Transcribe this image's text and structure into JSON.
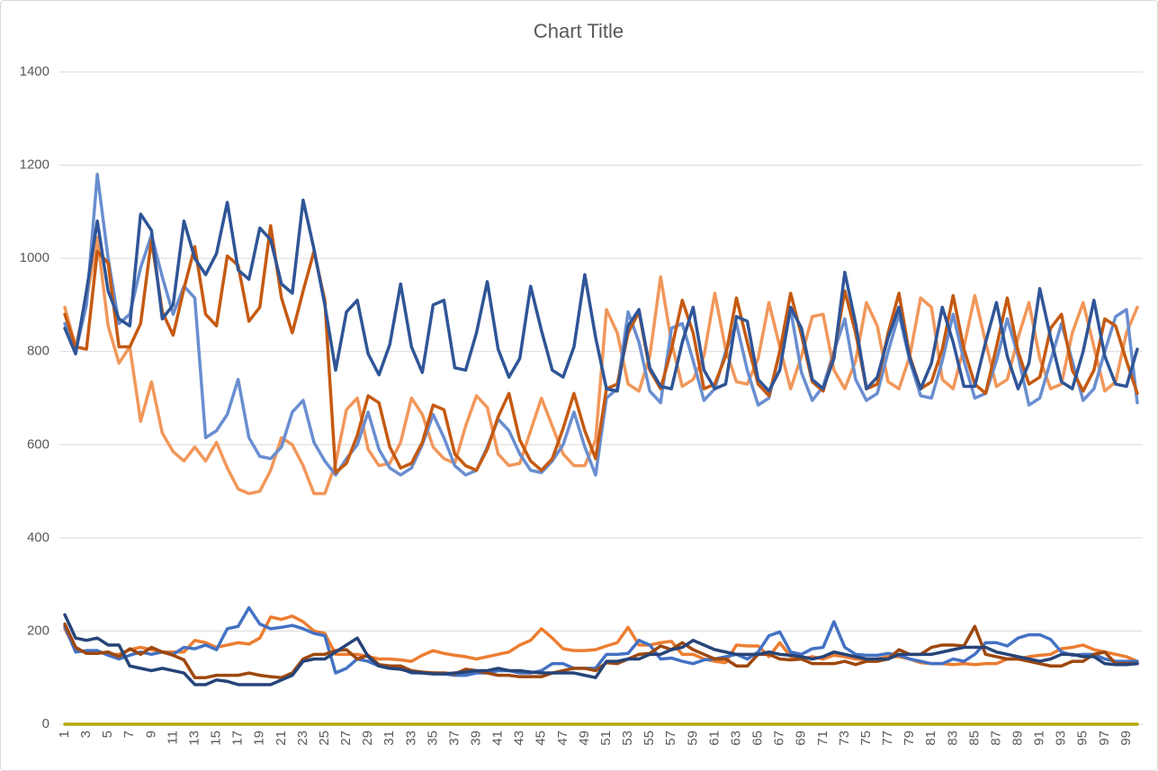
{
  "chart_data": {
    "type": "line",
    "title": "Chart Title",
    "categories": [
      1,
      null,
      3,
      null,
      5,
      null,
      7,
      null,
      9,
      null,
      11,
      null,
      13,
      null,
      15,
      null,
      17,
      null,
      19,
      null,
      21,
      null,
      23,
      null,
      25,
      null,
      27,
      null,
      29,
      null,
      31,
      null,
      33,
      null,
      35,
      null,
      37,
      null,
      39,
      null,
      41,
      null,
      43,
      null,
      45,
      null,
      47,
      null,
      49,
      null,
      51,
      null,
      53,
      null,
      55,
      null,
      57,
      null,
      59,
      null,
      61,
      null,
      63,
      null,
      65,
      null,
      67,
      null,
      69,
      null,
      71,
      null,
      73,
      null,
      75,
      null,
      77,
      null,
      79,
      null,
      81,
      null,
      83,
      null,
      85,
      null,
      87,
      null,
      89,
      null,
      91,
      null,
      93,
      null,
      95,
      null,
      97,
      null,
      99,
      null
    ],
    "ylim": [
      0,
      1400
    ],
    "yticks": [
      0,
      200,
      400,
      600,
      800,
      1000,
      1200,
      1400
    ],
    "grid": true,
    "series": [
      {
        "color": "#b4a900",
        "values": [
          0,
          0,
          0,
          0,
          0,
          0,
          0,
          0,
          0,
          0,
          0,
          0,
          0,
          0,
          0,
          0,
          0,
          0,
          0,
          0,
          0,
          0,
          0,
          0,
          0,
          0,
          0,
          0,
          0,
          0,
          0,
          0,
          0,
          0,
          0,
          0,
          0,
          0,
          0,
          0,
          0,
          0,
          0,
          0,
          0,
          0,
          0,
          0,
          0,
          0,
          0,
          0,
          0,
          0,
          0,
          0,
          0,
          0,
          0,
          0,
          0,
          0,
          0,
          0,
          0,
          0,
          0,
          0,
          0,
          0,
          0,
          0,
          0,
          0,
          0,
          0,
          0,
          0,
          0,
          0,
          0,
          0,
          0,
          0,
          0,
          0,
          0,
          0,
          0,
          0,
          0,
          0,
          0,
          0,
          0,
          0,
          0,
          0,
          0,
          0
        ]
      },
      {
        "color": "#f1975a",
        "values": [
          895,
          810,
          910,
          1045,
          855,
          775,
          810,
          650,
          735,
          625,
          585,
          565,
          595,
          565,
          605,
          550,
          505,
          495,
          500,
          545,
          615,
          600,
          555,
          495,
          495,
          560,
          675,
          700,
          590,
          555,
          560,
          605,
          700,
          665,
          595,
          570,
          560,
          640,
          705,
          680,
          580,
          555,
          560,
          630,
          700,
          640,
          580,
          555,
          555,
          610,
          890,
          840,
          730,
          715,
          790,
          960,
          820,
          725,
          740,
          790,
          925,
          805,
          735,
          730,
          785,
          905,
          810,
          720,
          790,
          875,
          880,
          760,
          720,
          780,
          905,
          855,
          735,
          720,
          790,
          915,
          895,
          740,
          720,
          810,
          920,
          820,
          725,
          740,
          830,
          905,
          785,
          720,
          730,
          840,
          905,
          810,
          715,
          735,
          840,
          895
        ]
      },
      {
        "color": "#698ed0",
        "values": [
          860,
          800,
          900,
          1180,
          1000,
          860,
          880,
          980,
          1050,
          960,
          880,
          940,
          915,
          615,
          630,
          665,
          740,
          615,
          575,
          570,
          595,
          670,
          695,
          605,
          565,
          535,
          570,
          600,
          670,
          590,
          550,
          535,
          550,
          600,
          665,
          615,
          555,
          535,
          545,
          595,
          655,
          630,
          580,
          545,
          540,
          565,
          600,
          670,
          595,
          535,
          700,
          720,
          885,
          820,
          715,
          690,
          850,
          860,
          780,
          695,
          720,
          800,
          860,
          760,
          685,
          700,
          800,
          890,
          755,
          695,
          725,
          800,
          870,
          740,
          695,
          710,
          800,
          880,
          780,
          705,
          700,
          780,
          880,
          780,
          700,
          710,
          780,
          870,
          790,
          685,
          700,
          780,
          860,
          780,
          695,
          720,
          800,
          875,
          890,
          690
        ]
      },
      {
        "color": "#c55a11",
        "values": [
          880,
          810,
          805,
          1015,
          990,
          810,
          810,
          860,
          1040,
          885,
          835,
          935,
          1025,
          880,
          855,
          1005,
          985,
          865,
          895,
          1070,
          915,
          840,
          930,
          1015,
          910,
          540,
          560,
          620,
          705,
          690,
          595,
          550,
          560,
          605,
          685,
          675,
          580,
          555,
          545,
          590,
          660,
          710,
          610,
          565,
          545,
          570,
          635,
          710,
          630,
          570,
          720,
          730,
          840,
          885,
          760,
          720,
          805,
          910,
          840,
          720,
          730,
          790,
          915,
          820,
          730,
          705,
          800,
          925,
          835,
          735,
          715,
          795,
          930,
          840,
          720,
          730,
          840,
          925,
          790,
          720,
          735,
          805,
          920,
          805,
          730,
          710,
          810,
          915,
          800,
          730,
          745,
          850,
          880,
          760,
          715,
          760,
          870,
          855,
          780,
          710
        ]
      },
      {
        "color": "#2f5597",
        "values": [
          850,
          795,
          930,
          1080,
          930,
          870,
          855,
          1095,
          1060,
          870,
          900,
          1080,
          1000,
          965,
          1010,
          1120,
          975,
          955,
          1065,
          1040,
          945,
          925,
          1125,
          1020,
          900,
          760,
          885,
          910,
          795,
          750,
          815,
          945,
          810,
          755,
          900,
          910,
          765,
          760,
          840,
          950,
          805,
          745,
          785,
          940,
          845,
          760,
          745,
          810,
          965,
          830,
          720,
          715,
          855,
          890,
          765,
          725,
          720,
          820,
          895,
          760,
          720,
          730,
          875,
          865,
          740,
          715,
          760,
          895,
          850,
          740,
          720,
          785,
          970,
          860,
          720,
          745,
          830,
          895,
          785,
          720,
          775,
          895,
          820,
          725,
          725,
          820,
          905,
          790,
          720,
          775,
          935,
          830,
          735,
          720,
          800,
          910,
          790,
          730,
          725,
          805
        ]
      },
      {
        "color": "#ed7d31",
        "values": [
          205,
          160,
          155,
          155,
          150,
          150,
          160,
          165,
          160,
          155,
          155,
          155,
          180,
          175,
          165,
          170,
          175,
          172,
          185,
          230,
          225,
          232,
          220,
          200,
          195,
          150,
          150,
          150,
          145,
          140,
          140,
          138,
          135,
          148,
          158,
          152,
          148,
          145,
          140,
          145,
          150,
          155,
          170,
          180,
          205,
          185,
          162,
          158,
          158,
          160,
          168,
          175,
          208,
          170,
          170,
          175,
          178,
          150,
          150,
          140,
          135,
          132,
          170,
          168,
          168,
          145,
          175,
          145,
          140,
          145,
          140,
          148,
          145,
          140,
          138,
          140,
          145,
          145,
          140,
          132,
          130,
          130,
          128,
          130,
          128,
          130,
          130,
          140,
          140,
          145,
          148,
          150,
          162,
          165,
          170,
          160,
          155,
          150,
          145,
          135
        ]
      },
      {
        "color": "#4472c4",
        "values": [
          210,
          155,
          158,
          158,
          148,
          140,
          148,
          155,
          150,
          155,
          150,
          165,
          162,
          170,
          160,
          205,
          210,
          250,
          215,
          205,
          208,
          212,
          205,
          195,
          190,
          110,
          120,
          140,
          135,
          125,
          125,
          120,
          110,
          110,
          110,
          108,
          105,
          105,
          110,
          110,
          115,
          115,
          110,
          110,
          115,
          130,
          130,
          120,
          120,
          120,
          150,
          150,
          152,
          180,
          170,
          140,
          142,
          135,
          130,
          138,
          140,
          145,
          150,
          140,
          155,
          190,
          198,
          155,
          150,
          162,
          165,
          220,
          165,
          150,
          148,
          148,
          152,
          148,
          140,
          135,
          130,
          130,
          140,
          135,
          150,
          175,
          175,
          168,
          185,
          192,
          192,
          182,
          155,
          148,
          150,
          150,
          140,
          135,
          135,
          135
        ]
      },
      {
        "color": "#9e480e",
        "values": [
          215,
          165,
          152,
          152,
          155,
          145,
          162,
          150,
          165,
          155,
          148,
          138,
          100,
          100,
          105,
          105,
          105,
          110,
          105,
          102,
          100,
          110,
          140,
          150,
          150,
          158,
          160,
          140,
          148,
          128,
          125,
          125,
          115,
          112,
          110,
          110,
          108,
          118,
          115,
          110,
          105,
          105,
          102,
          102,
          102,
          110,
          115,
          120,
          120,
          115,
          132,
          130,
          140,
          150,
          152,
          168,
          160,
          175,
          160,
          150,
          140,
          140,
          125,
          125,
          150,
          150,
          140,
          138,
          140,
          130,
          130,
          130,
          135,
          128,
          135,
          135,
          140,
          160,
          150,
          150,
          165,
          170,
          170,
          168,
          210,
          150,
          145,
          140,
          140,
          135,
          130,
          125,
          125,
          135,
          135,
          150,
          155,
          130,
          130,
          130
        ]
      },
      {
        "color": "#264478",
        "values": [
          235,
          185,
          180,
          185,
          170,
          170,
          125,
          120,
          115,
          120,
          115,
          110,
          85,
          85,
          95,
          92,
          85,
          85,
          85,
          85,
          95,
          105,
          135,
          140,
          140,
          155,
          170,
          185,
          145,
          125,
          120,
          118,
          112,
          110,
          108,
          108,
          110,
          112,
          115,
          115,
          120,
          115,
          115,
          112,
          110,
          110,
          110,
          110,
          105,
          100,
          135,
          135,
          140,
          140,
          150,
          150,
          160,
          165,
          180,
          170,
          160,
          155,
          150,
          150,
          150,
          155,
          150,
          148,
          145,
          140,
          145,
          155,
          150,
          145,
          140,
          140,
          140,
          150,
          150,
          150,
          150,
          155,
          160,
          165,
          165,
          165,
          155,
          150,
          145,
          140,
          135,
          140,
          150,
          150,
          145,
          145,
          130,
          128,
          128,
          130
        ]
      }
    ]
  }
}
